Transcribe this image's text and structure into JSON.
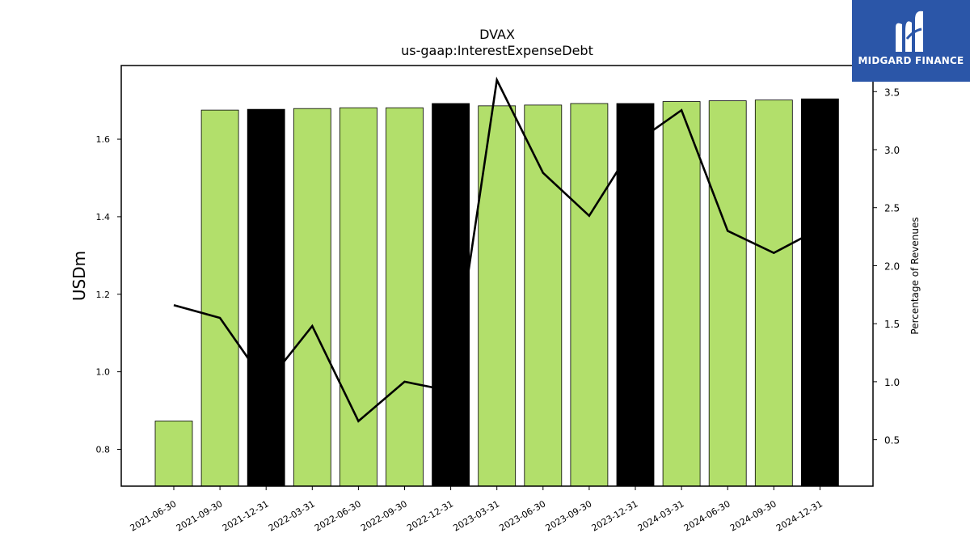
{
  "chart_data": {
    "type": "bar",
    "title": "DVAX",
    "subtitle": "us-gaap:InterestExpenseDebt",
    "ylabel": "USDm",
    "y2label": "Percentage of Revenues",
    "ylim": [
      0.705,
      1.79
    ],
    "y2lim": [
      0.1,
      3.725
    ],
    "yticks": [
      "0.8",
      "1.0",
      "1.2",
      "1.4",
      "1.6"
    ],
    "y2ticks": [
      "0.5",
      "1.0",
      "1.5",
      "2.0",
      "2.5",
      "3.0",
      "3.5"
    ],
    "categories": [
      "2021-06-30",
      "2021-09-30",
      "2021-12-31",
      "2022-03-31",
      "2022-06-30",
      "2022-09-30",
      "2022-12-31",
      "2023-03-31",
      "2023-06-30",
      "2023-09-30",
      "2023-12-31",
      "2024-03-31",
      "2024-06-30",
      "2024-09-30",
      "2024-12-31"
    ],
    "series": [
      {
        "type": "bar",
        "values": [
          0.873,
          1.675,
          1.677,
          1.679,
          1.681,
          1.681,
          1.692,
          1.686,
          1.688,
          1.692,
          1.692,
          1.697,
          1.699,
          1.701,
          1.704
        ],
        "highlight": [
          false,
          false,
          true,
          false,
          false,
          false,
          true,
          false,
          false,
          false,
          true,
          false,
          false,
          false,
          true
        ]
      },
      {
        "type": "line",
        "axis": "right",
        "values": [
          1.66,
          1.55,
          0.98,
          1.48,
          0.66,
          1.0,
          0.92,
          3.6,
          2.8,
          2.43,
          3.06,
          3.34,
          2.3,
          2.11,
          2.32
        ]
      }
    ],
    "colors": {
      "bar": "#b2df6b",
      "bar_highlight": "#000000",
      "line": "#000000",
      "bar_edge": "#000000"
    },
    "grid": false
  },
  "logo": {
    "text": "MIDGARD FINANCE",
    "icon": "midgard-logo-icon",
    "color": "#2b56a8"
  }
}
